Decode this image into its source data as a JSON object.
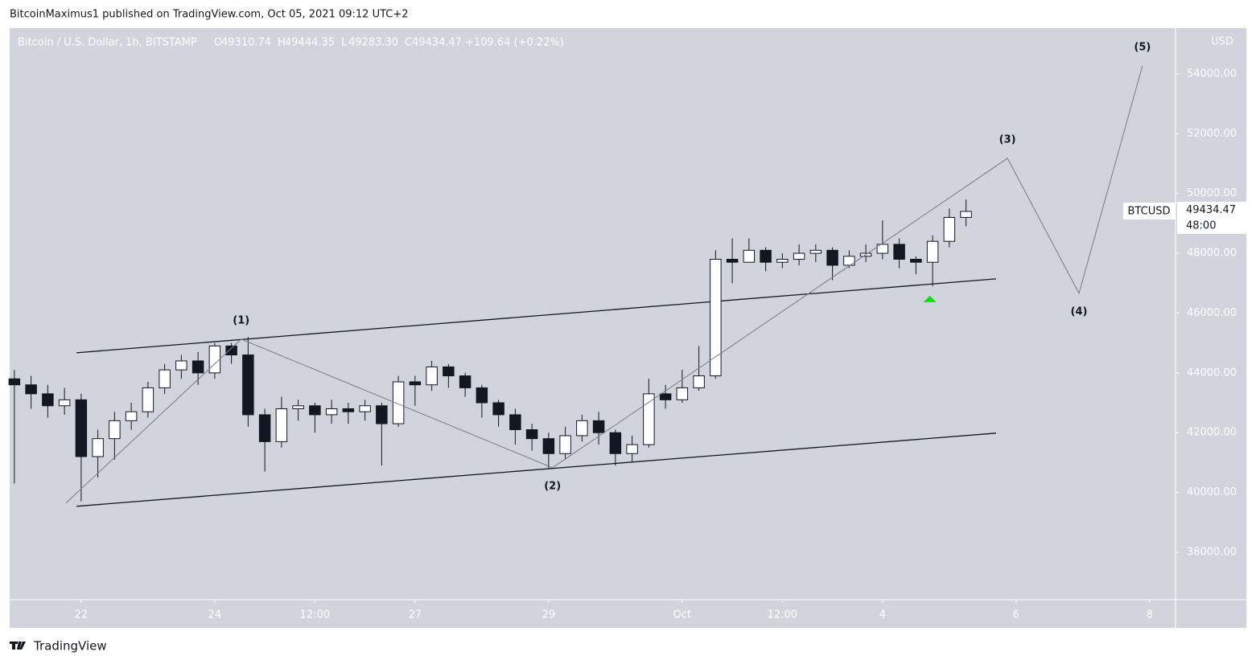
{
  "header": {
    "publisher": "BitcoinMaximus1 published on TradingView.com, Oct 05, 2021 09:12 UTC+2"
  },
  "footer": {
    "brand": "TradingView"
  },
  "chart_data": {
    "type": "candlestick",
    "legend": {
      "symbol": "Bitcoin / U.S. Dollar, 1h, BITSTAMP",
      "items": [
        {
          "key": "O",
          "value": "49310.74"
        },
        {
          "key": "H",
          "value": "49444.35"
        },
        {
          "key": "L",
          "value": "49283.30"
        },
        {
          "key": "C",
          "value": "49434.47"
        }
      ],
      "change": "+109.64 (+0.22%)"
    },
    "y_axis_label": "USD",
    "badge": {
      "symbol": "BTCUSD",
      "price": 49434.47,
      "countdown": "48:00"
    },
    "x": [
      -24,
      -18,
      -12,
      -6,
      0,
      6,
      12,
      18,
      24,
      30,
      36,
      42,
      48,
      54,
      60,
      66,
      72,
      78,
      84,
      90,
      96,
      102,
      108,
      114,
      120,
      126,
      132,
      138,
      144,
      150,
      156,
      162,
      168,
      174,
      180,
      186,
      192,
      198,
      204,
      210,
      216,
      222,
      228,
      234,
      240,
      246,
      252,
      258,
      264,
      270,
      276,
      282,
      288,
      294,
      300,
      306,
      312,
      318
    ],
    "open": [
      43800,
      43600,
      43300,
      42900,
      43100,
      41200,
      41800,
      42400,
      42700,
      43500,
      44100,
      44400,
      44000,
      44900,
      44600,
      42600,
      41700,
      42800,
      42900,
      42600,
      42800,
      42700,
      42900,
      42300,
      43700,
      43600,
      44200,
      43900,
      43500,
      43000,
      42600,
      42100,
      41800,
      41300,
      41900,
      42400,
      42000,
      41300,
      41600,
      43300,
      43100,
      43500,
      43900,
      47800,
      47700,
      48100,
      47700,
      47800,
      48000,
      48100,
      47600,
      47900,
      48000,
      48300,
      47800,
      47700,
      48400,
      49200
    ],
    "high": [
      44100,
      43900,
      43600,
      43500,
      43300,
      42100,
      42700,
      43000,
      43700,
      44300,
      44600,
      44700,
      45000,
      45000,
      45200,
      42800,
      43200,
      43100,
      43000,
      43100,
      43000,
      43100,
      43000,
      43900,
      43900,
      44400,
      44300,
      44000,
      43600,
      43100,
      42800,
      42300,
      42000,
      42200,
      42600,
      42700,
      42100,
      41900,
      43800,
      43600,
      44100,
      44900,
      48100,
      48500,
      48500,
      48200,
      48000,
      48300,
      48300,
      48200,
      48100,
      48300,
      49100,
      48500,
      47900,
      48600,
      49500,
      49800
    ],
    "low": [
      40300,
      42800,
      42500,
      42600,
      39700,
      40500,
      41100,
      42100,
      42500,
      43300,
      43800,
      43600,
      43800,
      44300,
      42200,
      40700,
      41500,
      42400,
      42000,
      42300,
      42300,
      42400,
      40900,
      42200,
      42900,
      43400,
      43500,
      43200,
      42500,
      42200,
      41600,
      41400,
      40800,
      41100,
      41700,
      41600,
      40900,
      41000,
      41500,
      42800,
      43000,
      43400,
      43800,
      47000,
      47700,
      47400,
      47500,
      47600,
      47700,
      47100,
      47500,
      47700,
      47800,
      47500,
      47300,
      46900,
      48200,
      48900
    ],
    "close": [
      43600,
      43300,
      42900,
      43100,
      41200,
      41800,
      42400,
      42700,
      43500,
      44100,
      44400,
      44000,
      44900,
      44600,
      42600,
      41700,
      42800,
      42900,
      42600,
      42800,
      42700,
      42900,
      42300,
      43700,
      43600,
      44200,
      43900,
      43500,
      43000,
      42600,
      42100,
      41800,
      41300,
      41900,
      42400,
      42000,
      41300,
      41600,
      43300,
      43100,
      43500,
      43900,
      47800,
      47700,
      48100,
      47700,
      47800,
      48000,
      48100,
      47600,
      47900,
      48000,
      48300,
      47800,
      47700,
      48400,
      49200,
      49400
    ],
    "up_color": "#ffffff",
    "down_color": "#131722",
    "wick_color": "#131722",
    "xlim": [
      -25.7,
      393.3
    ],
    "xticks": [
      {
        "value": 0,
        "label": "22"
      },
      {
        "value": 48,
        "label": "24"
      },
      {
        "value": 84,
        "label": "12:00"
      },
      {
        "value": 120,
        "label": "27"
      },
      {
        "value": 168,
        "label": "29"
      },
      {
        "value": 216,
        "label": "Oct"
      },
      {
        "value": 252,
        "label": "12:00"
      },
      {
        "value": 288,
        "label": "4"
      },
      {
        "value": 336,
        "label": "6"
      },
      {
        "value": 384,
        "label": "8"
      }
    ],
    "ylim": [
      36414,
      55530
    ],
    "yticks": [
      {
        "value": 38000,
        "label": "38000.00"
      },
      {
        "value": 40000,
        "label": "40000.00"
      },
      {
        "value": 42000,
        "label": "42000.00"
      },
      {
        "value": 44000,
        "label": "44000.00"
      },
      {
        "value": 46000,
        "label": "46000.00"
      },
      {
        "value": 48000,
        "label": "48000.00"
      },
      {
        "value": 50000,
        "label": "50000.00"
      },
      {
        "value": 52000,
        "label": "52000.00"
      },
      {
        "value": 54000,
        "label": "54000.00"
      }
    ],
    "wave": {
      "x": [
        -5.5,
        57.5,
        169.4,
        332.9,
        358.6,
        381.4
      ],
      "y": [
        39645,
        45129,
        40828,
        51177,
        46661,
        54269
      ],
      "labels": [
        null,
        "(1)",
        "(2)",
        "(3)",
        "(4)",
        "(5)"
      ],
      "color": "#787b86"
    },
    "channel": [
      {
        "x": [
          -1.7,
          328.8
        ],
        "y": [
          44672,
          47145
        ]
      },
      {
        "x": [
          -1.7,
          328.8
        ],
        "y": [
          39538,
          41984
        ]
      }
    ],
    "channel_color": "#131722",
    "marker": {
      "x": 305,
      "y": 46473,
      "color": "#00e600"
    }
  }
}
